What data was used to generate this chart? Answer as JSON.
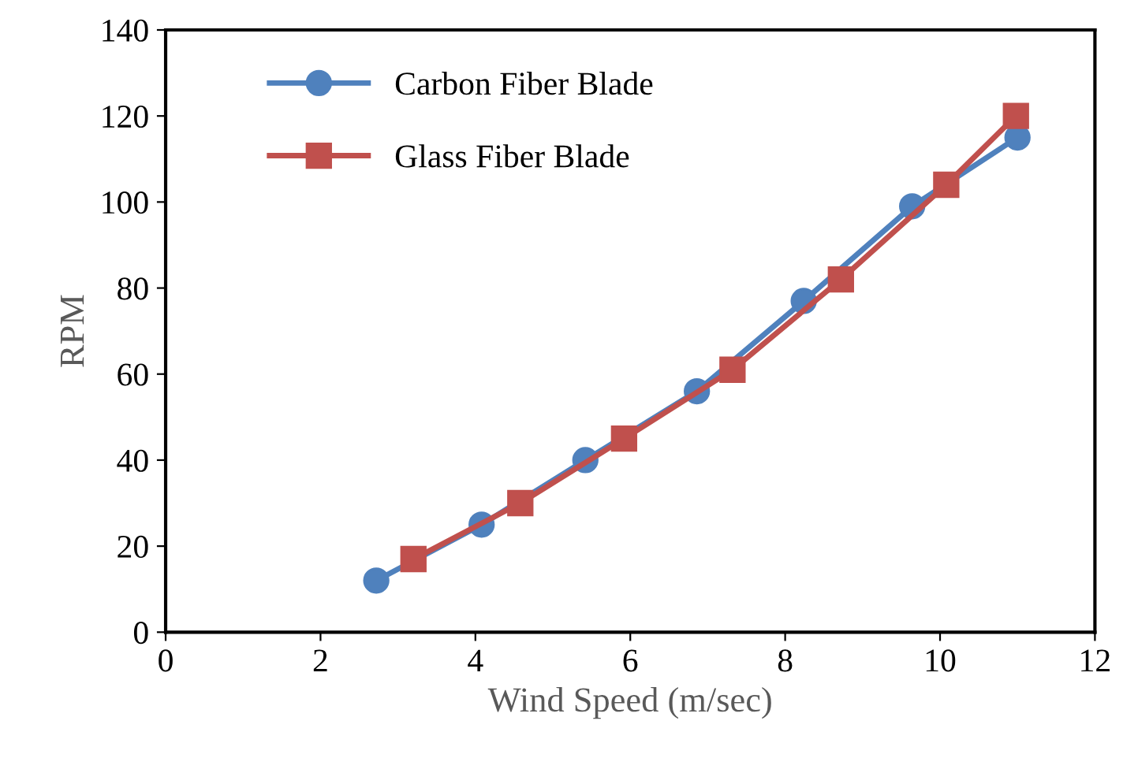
{
  "chart_data": {
    "type": "line",
    "xlabel": "Wind Speed (m/sec)",
    "ylabel": "RPM",
    "xlim": [
      0,
      12
    ],
    "xticks": [
      0,
      2,
      4,
      6,
      8,
      10,
      12
    ],
    "ylim": [
      0,
      140
    ],
    "yticks": [
      0,
      20,
      40,
      60,
      80,
      100,
      120,
      140
    ],
    "grid": false,
    "legend": "top left",
    "line_style": "solid",
    "series": [
      {
        "name": "Carbon Fiber Blade",
        "color": "#4f81bd",
        "marker": "circle",
        "x": [
          2.72,
          4.08,
          5.42,
          6.86,
          8.24,
          9.64,
          11.0
        ],
        "values": [
          12,
          25,
          40,
          56,
          77,
          99,
          115
        ]
      },
      {
        "name": "Glass Fiber Blade",
        "color": "#c0504d",
        "marker": "square",
        "x": [
          3.2,
          4.58,
          5.92,
          7.32,
          8.72,
          10.08,
          10.98
        ],
        "values": [
          17,
          30,
          45,
          61,
          82,
          104,
          120
        ]
      }
    ]
  }
}
